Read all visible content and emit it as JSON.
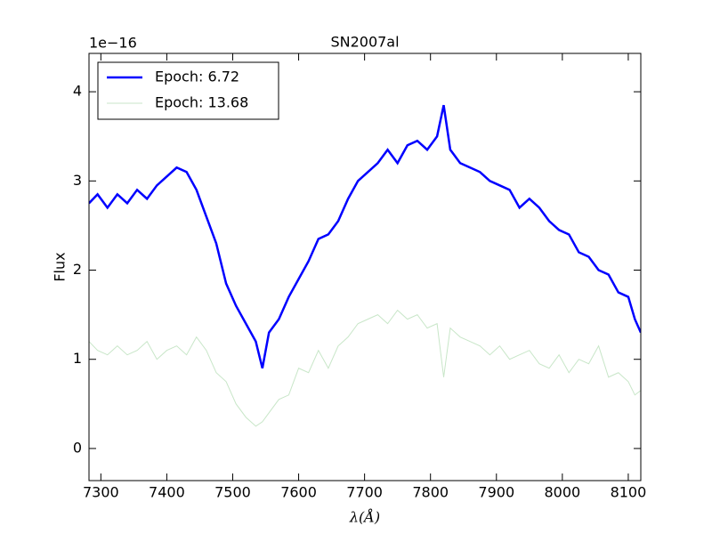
{
  "chart_data": {
    "type": "line",
    "title": "SN2007al",
    "xlabel": "λ(Å)",
    "ylabel": "Flux",
    "y_offset_label": "1e−16",
    "x": [
      7282,
      7295,
      7310,
      7325,
      7340,
      7355,
      7370,
      7385,
      7400,
      7415,
      7430,
      7445,
      7460,
      7475,
      7490,
      7505,
      7520,
      7535,
      7545,
      7555,
      7570,
      7585,
      7600,
      7615,
      7630,
      7645,
      7660,
      7675,
      7690,
      7705,
      7720,
      7735,
      7750,
      7765,
      7780,
      7795,
      7810,
      7820,
      7830,
      7845,
      7860,
      7875,
      7890,
      7905,
      7920,
      7935,
      7950,
      7965,
      7980,
      7995,
      8010,
      8025,
      8040,
      8055,
      8070,
      8085,
      8100,
      8110,
      8119
    ],
    "series": [
      {
        "name": "Epoch: 6.72",
        "color": "#0000ff",
        "values": [
          2.75,
          2.85,
          2.7,
          2.85,
          2.75,
          2.9,
          2.8,
          2.95,
          3.05,
          3.15,
          3.1,
          2.9,
          2.6,
          2.3,
          1.85,
          1.6,
          1.4,
          1.2,
          0.9,
          1.3,
          1.45,
          1.7,
          1.9,
          2.1,
          2.35,
          2.4,
          2.55,
          2.8,
          3.0,
          3.1,
          3.2,
          3.35,
          3.2,
          3.4,
          3.45,
          3.35,
          3.5,
          3.85,
          3.35,
          3.2,
          3.15,
          3.1,
          3.0,
          2.95,
          2.9,
          2.7,
          2.8,
          2.7,
          2.55,
          2.45,
          2.4,
          2.2,
          2.15,
          2.0,
          1.95,
          1.75,
          1.7,
          1.45,
          1.3
        ]
      },
      {
        "name": "Epoch: 13.68",
        "color": "#c8e6c8",
        "values": [
          1.2,
          1.1,
          1.05,
          1.15,
          1.05,
          1.1,
          1.2,
          1.0,
          1.1,
          1.15,
          1.05,
          1.25,
          1.1,
          0.85,
          0.75,
          0.5,
          0.35,
          0.25,
          0.3,
          0.4,
          0.55,
          0.6,
          0.9,
          0.85,
          1.1,
          0.9,
          1.15,
          1.25,
          1.4,
          1.45,
          1.5,
          1.4,
          1.55,
          1.45,
          1.5,
          1.35,
          1.4,
          0.8,
          1.35,
          1.25,
          1.2,
          1.15,
          1.05,
          1.15,
          1.0,
          1.05,
          1.1,
          0.95,
          0.9,
          1.05,
          0.85,
          1.0,
          0.95,
          1.15,
          0.8,
          0.85,
          0.75,
          0.6,
          0.65
        ]
      }
    ],
    "xlim": [
      7282,
      8119
    ],
    "ylim": [
      -0.36,
      4.43
    ],
    "xticks": [
      7300,
      7400,
      7500,
      7600,
      7700,
      7800,
      7900,
      8000,
      8100
    ],
    "yticks": [
      0,
      1,
      2,
      3,
      4
    ],
    "legend": "upper left"
  }
}
